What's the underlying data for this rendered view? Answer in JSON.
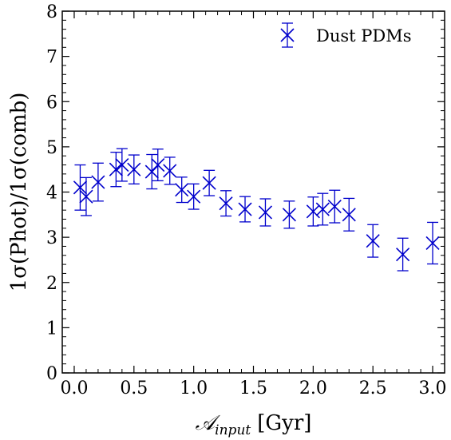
{
  "chart_data": {
    "type": "scatter",
    "xlabel": "𝒜",
    "xlabel_sub": "input",
    "xlabel_unit": "[Gyr]",
    "ylabel": "1σ(Phot)/1σ(comb)",
    "xlim": [
      -0.1,
      3.1
    ],
    "ylim": [
      0,
      8
    ],
    "xticks": [
      "0.0",
      "0.5",
      "1.0",
      "1.5",
      "2.0",
      "2.5",
      "3.0"
    ],
    "yticks": [
      "0",
      "1",
      "2",
      "3",
      "4",
      "5",
      "6",
      "7",
      "8"
    ],
    "legend_position": "top-right",
    "color": "#0000cc",
    "series": [
      {
        "name": "Dust PDMs",
        "marker": "x",
        "x": [
          0.05,
          0.1,
          0.2,
          0.35,
          0.4,
          0.5,
          0.65,
          0.7,
          0.8,
          0.9,
          1.0,
          1.13,
          1.27,
          1.43,
          1.6,
          1.8,
          2.0,
          2.08,
          2.18,
          2.3,
          2.5,
          2.75,
          3.0
        ],
        "y": [
          4.1,
          3.9,
          4.22,
          4.5,
          4.6,
          4.5,
          4.45,
          4.6,
          4.47,
          4.05,
          3.9,
          4.2,
          3.75,
          3.62,
          3.55,
          3.5,
          3.57,
          3.62,
          3.68,
          3.5,
          2.92,
          2.62,
          2.87
        ],
        "yerr": [
          0.5,
          0.42,
          0.42,
          0.38,
          0.36,
          0.32,
          0.38,
          0.35,
          0.3,
          0.28,
          0.28,
          0.28,
          0.28,
          0.28,
          0.3,
          0.3,
          0.32,
          0.35,
          0.36,
          0.36,
          0.36,
          0.36,
          0.46
        ]
      }
    ]
  }
}
